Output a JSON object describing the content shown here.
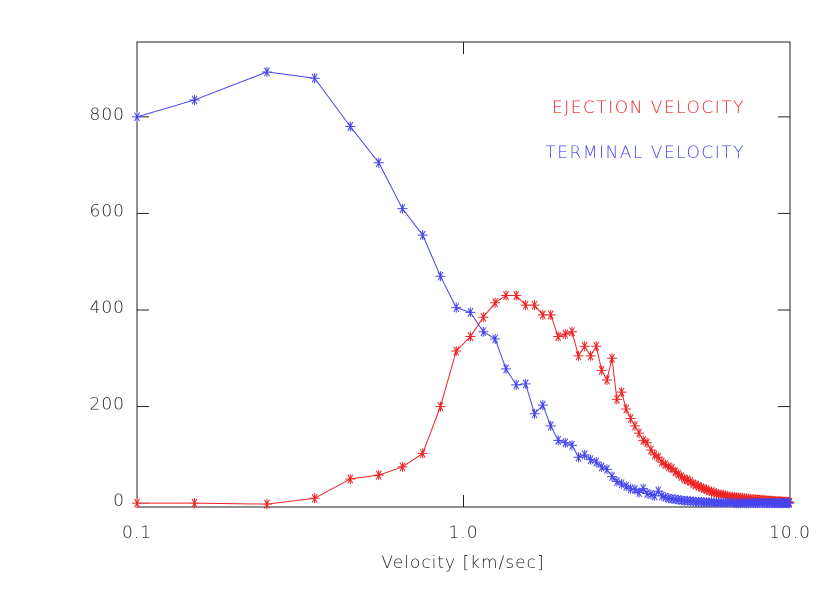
{
  "chart_data": {
    "type": "line",
    "x_label": "Velocity [km/sec]",
    "x": [
      0.1,
      0.15,
      0.25,
      0.35,
      0.45,
      0.55,
      0.65,
      0.75,
      0.85,
      0.95,
      1.05,
      1.15,
      1.25,
      1.35,
      1.45,
      1.55,
      1.65,
      1.75,
      1.85,
      1.95,
      2.05,
      2.15,
      2.25,
      2.35,
      2.45,
      2.55,
      2.65,
      2.75,
      2.85,
      2.95,
      3.05,
      3.15,
      3.25,
      3.35,
      3.45,
      3.55,
      3.65,
      3.75,
      3.85,
      3.95,
      4.05,
      4.15,
      4.25,
      4.35,
      4.45,
      4.55,
      4.65,
      4.75,
      4.85,
      4.95,
      5.05,
      5.15,
      5.25,
      5.35,
      5.45,
      5.55,
      5.65,
      5.75,
      5.85,
      5.95,
      6.05,
      6.15,
      6.25,
      6.35,
      6.45,
      6.55,
      6.65,
      6.75,
      6.85,
      6.95,
      7.05,
      7.15,
      7.25,
      7.35,
      7.45,
      7.55,
      7.65,
      7.75,
      7.85,
      7.95,
      8.05,
      8.15,
      8.25,
      8.35,
      8.45,
      8.55,
      8.65,
      8.75,
      8.85,
      8.95,
      9.05,
      9.15,
      9.25,
      9.35,
      9.45,
      9.55,
      9.65,
      9.75,
      9.85,
      9.95
    ],
    "series": [
      {
        "name": "EJECTION VELOCITY",
        "color": "#ee2222",
        "values": [
          0,
          0,
          -2,
          10,
          50,
          58,
          75,
          103,
          200,
          315,
          345,
          385,
          415,
          430,
          430,
          410,
          410,
          390,
          390,
          345,
          350,
          355,
          305,
          325,
          305,
          325,
          275,
          255,
          300,
          215,
          230,
          195,
          175,
          160,
          145,
          130,
          125,
          110,
          100,
          95,
          85,
          80,
          75,
          72,
          65,
          60,
          55,
          50,
          48,
          45,
          40,
          38,
          35,
          32,
          30,
          28,
          25,
          24,
          22,
          20,
          19,
          18,
          17,
          16,
          15,
          14,
          13,
          13,
          12,
          12,
          11,
          11,
          10,
          10,
          9,
          9,
          8,
          8,
          8,
          7,
          7,
          7,
          6,
          6,
          6,
          5,
          5,
          5,
          5,
          4,
          4,
          4,
          4,
          4,
          3,
          3,
          3,
          3,
          3,
          2
        ]
      },
      {
        "name": "TERMINAL VELOCITY",
        "color": "#4444ee",
        "values": [
          800,
          835,
          893,
          880,
          780,
          705,
          610,
          555,
          470,
          405,
          395,
          355,
          340,
          278,
          245,
          247,
          185,
          203,
          160,
          130,
          125,
          120,
          95,
          100,
          90,
          85,
          75,
          70,
          55,
          45,
          40,
          35,
          30,
          28,
          22,
          30,
          20,
          18,
          15,
          25,
          15,
          12,
          10,
          9,
          8,
          7,
          6,
          5,
          5,
          4,
          4,
          3,
          3,
          3,
          2,
          2,
          2,
          2,
          1,
          1,
          1,
          1,
          1,
          1,
          1,
          1,
          1,
          0,
          0,
          0,
          0,
          0,
          0,
          0,
          0,
          0,
          0,
          0,
          0,
          0,
          0,
          0,
          0,
          0,
          0,
          0,
          0,
          0,
          0,
          0,
          0,
          0,
          0,
          0,
          0,
          0,
          0,
          0,
          0,
          0
        ]
      }
    ],
    "x_log": true,
    "xlim": [
      0.1,
      10
    ],
    "xticks": [
      0.1,
      {
        "value": 1,
        "label": "1.0"
      },
      {
        "value": 10,
        "label": "10.0"
      }
    ],
    "ylim": [
      -8,
      955
    ],
    "yticks": [
      0,
      200,
      400,
      600,
      800
    ],
    "legend_position": "upper right"
  }
}
